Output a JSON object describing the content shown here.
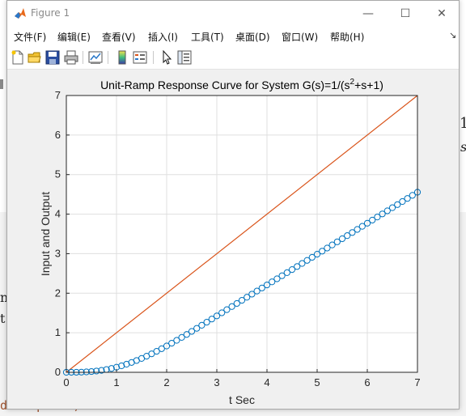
{
  "window": {
    "title": "Figure 1",
    "minimize_glyph": "—",
    "maximize_glyph": "☐",
    "close_glyph": "✕"
  },
  "menu": [
    {
      "label": "文件(F)"
    },
    {
      "label": "编辑(E)"
    },
    {
      "label": "查看(V)"
    },
    {
      "label": "插入(I)"
    },
    {
      "label": "工具(T)"
    },
    {
      "label": "桌面(D)"
    },
    {
      "label": "窗口(W)"
    },
    {
      "label": "帮助(H)"
    }
  ],
  "menu_overflow_glyph": "↘",
  "toolbar": [
    {
      "icon": "new-figure-icon"
    },
    {
      "icon": "open-file-icon"
    },
    {
      "icon": "save-icon"
    },
    {
      "icon": "print-icon"
    },
    {
      "icon": "link-plot-icon"
    },
    {
      "icon": "colorbar-icon"
    },
    {
      "icon": "legend-icon"
    },
    {
      "icon": "pointer-icon"
    },
    {
      "icon": "property-editor-icon"
    }
  ],
  "background_fragments": {
    "frac_top": "1",
    "frac_bot": "s",
    "left1": "n",
    "left2": "t",
    "code": "d steprot )"
  },
  "chart_data": {
    "type": "line",
    "title_parts": [
      "Unit-Ramp Response Curve for System G(s)=1/(s",
      "2",
      "+s+1)"
    ],
    "xlabel": "t Sec",
    "ylabel": "Input and Output",
    "xlim": [
      0,
      7
    ],
    "ylim": [
      0,
      7
    ],
    "xticks": [
      0,
      1,
      2,
      3,
      4,
      5,
      6,
      7
    ],
    "yticks": [
      0,
      1,
      2,
      3,
      4,
      5,
      6,
      7
    ],
    "grid": true,
    "series": [
      {
        "style": "line",
        "color": "#d95319",
        "x": [
          0,
          7
        ],
        "y": [
          0,
          7
        ]
      },
      {
        "style": "markers-o",
        "color": "#0072bd",
        "x": [
          0,
          0.1,
          0.2,
          0.3,
          0.4,
          0.5,
          0.6,
          0.7,
          0.8,
          0.9,
          1.0,
          1.1,
          1.2,
          1.3,
          1.4,
          1.5,
          1.6,
          1.7,
          1.8,
          1.9,
          2.0,
          2.1,
          2.2,
          2.3,
          2.4,
          2.5,
          2.6,
          2.7,
          2.8,
          2.9,
          3.0,
          3.1,
          3.2,
          3.3,
          3.4,
          3.5,
          3.6,
          3.7,
          3.8,
          3.9,
          4.0,
          4.1,
          4.2,
          4.3,
          4.4,
          4.5,
          4.6,
          4.7,
          4.8,
          4.9,
          5.0,
          5.1,
          5.2,
          5.3,
          5.4,
          5.5,
          5.6,
          5.7,
          5.8,
          5.9,
          6.0,
          6.1,
          6.2,
          6.3,
          6.4,
          6.5,
          6.6,
          6.7,
          6.8,
          6.9,
          7.0
        ],
        "y": [
          0,
          0.0002,
          0.0013,
          0.0043,
          0.01,
          0.019,
          0.0319,
          0.049,
          0.0707,
          0.097,
          0.128,
          0.1637,
          0.204,
          0.2487,
          0.2977,
          0.3506,
          0.4073,
          0.4673,
          0.5304,
          0.5964,
          0.6649,
          0.7355,
          0.808,
          0.8821,
          0.9576,
          1.0341,
          1.1115,
          1.1896,
          1.2681,
          1.3469,
          1.4259,
          1.5049,
          1.5839,
          1.6628,
          1.7414,
          1.8199,
          1.8982,
          1.9763,
          2.0542,
          2.132,
          2.2096,
          2.2872,
          2.3647,
          2.4422,
          2.5197,
          2.5972,
          2.6748,
          2.7525,
          2.8302,
          2.9081,
          2.9861,
          3.0642,
          3.1424,
          3.2207,
          3.2991,
          3.3776,
          3.4561,
          3.5346,
          3.6131,
          3.6916,
          3.7701,
          3.8486,
          3.927,
          4.0054,
          4.0837,
          4.162,
          4.2403,
          4.3186,
          4.3969,
          4.4752,
          4.5535
        ]
      }
    ]
  }
}
